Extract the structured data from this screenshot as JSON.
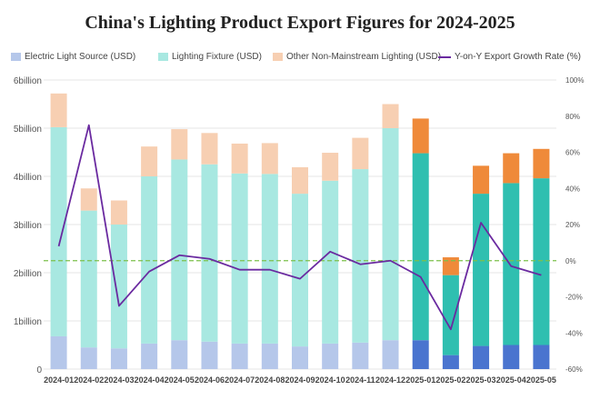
{
  "chart_data": {
    "type": "bar",
    "title": "China's Lighting Product Export Figures for 2024-2025",
    "categories": [
      "2024-01",
      "2024-02",
      "2024-03",
      "2024-04",
      "2024-05",
      "2024-06",
      "2024-07",
      "2024-08",
      "2024-09",
      "2024-10",
      "2024-11",
      "2024-12",
      "2025-01",
      "2025-02",
      "2025-03",
      "2025-04",
      "2025-05"
    ],
    "stacked": true,
    "series": [
      {
        "name": "Electric Light Source (USD)",
        "values": [
          0.68,
          0.45,
          0.43,
          0.53,
          0.6,
          0.57,
          0.53,
          0.53,
          0.47,
          0.53,
          0.55,
          0.6,
          0.6,
          0.29,
          0.48,
          0.5,
          0.5
        ],
        "colors": [
          "#b5c7ea",
          "#4a74cf"
        ]
      },
      {
        "name": "Lighting Fixture (USD)",
        "values": [
          4.34,
          2.84,
          2.57,
          3.47,
          3.75,
          3.68,
          3.53,
          3.52,
          3.17,
          3.38,
          3.6,
          4.4,
          3.88,
          1.66,
          3.16,
          3.36,
          3.46
        ],
        "colors": [
          "#a8e8e1",
          "#2fbfb0"
        ]
      },
      {
        "name": "Other Non-Mainstream Lighting (USD)",
        "values": [
          0.7,
          0.46,
          0.5,
          0.62,
          0.63,
          0.65,
          0.62,
          0.64,
          0.55,
          0.58,
          0.65,
          0.5,
          0.72,
          0.37,
          0.58,
          0.62,
          0.61
        ],
        "colors": [
          "#f7cfb2",
          "#ef8a3a"
        ]
      }
    ],
    "line_series": {
      "name": "Y-on-Y Export Growth Rate (%)",
      "values": [
        8,
        75,
        -25,
        -6,
        3,
        1,
        -5,
        -5,
        -10,
        5,
        -2,
        0,
        -9,
        -38,
        21,
        -3,
        -8
      ],
      "color": "#6a2aa0",
      "axis": "right"
    },
    "y_left": {
      "ticks": [
        "0",
        "1billion",
        "2billion",
        "3billion",
        "4billion",
        "5billion",
        "6billion"
      ],
      "ylim": [
        0,
        6
      ]
    },
    "y_right": {
      "ticks": [
        "-60%",
        "-40%",
        "-20%",
        "0%",
        "20%",
        "40%",
        "60%",
        "80%",
        "100%"
      ],
      "ylim": [
        -60,
        100
      ]
    },
    "reference_line": {
      "value": 0,
      "axis": "right",
      "color": "#7cc04b",
      "style": "dashed"
    },
    "grid": true,
    "legend_position": "top"
  }
}
